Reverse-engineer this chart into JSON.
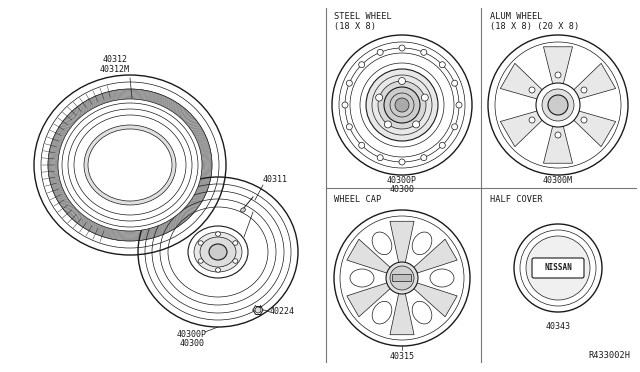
{
  "background_color": "#ffffff",
  "line_color": "#1a1a1a",
  "fig_width": 6.4,
  "fig_height": 3.72,
  "dpi": 100,
  "labels": {
    "tire": "40312\n40312M",
    "valve": "40311",
    "wheel_left_top": "40300P",
    "wheel_left_bot": "40300",
    "nut": "40224",
    "steel_wheel_title": "STEEL WHEEL\n(18 X 8)",
    "steel_wheel_part_top": "40300P",
    "steel_wheel_part_bot": "40300",
    "alum_wheel_title": "ALUM WHEEL\n(18 X 8) (20 X 8)",
    "alum_wheel_part": "40300M",
    "wheel_cap_title": "WHEEL CAP",
    "wheel_cap_part": "40315",
    "half_cover_title": "HALF COVER",
    "half_cover_part": "40343",
    "ref": "R433002H"
  }
}
